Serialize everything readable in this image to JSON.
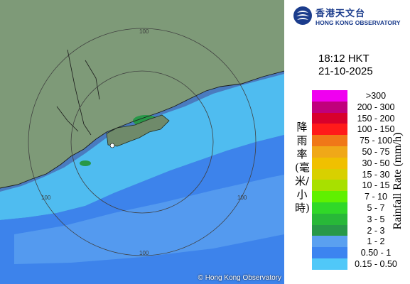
{
  "header": {
    "org_zh": "香港天文台",
    "org_en": "HONG KONG OBSERVATORY"
  },
  "timestamp": {
    "time": "18:12 HKT",
    "date": "21-10-2025"
  },
  "legend": {
    "title_zh": "降雨率(毫米/小時)",
    "title_en": "Rainfall Rate (mm/h)",
    "classes": [
      {
        "label": ">300",
        "color": "#f000f0"
      },
      {
        "label": "200 - 300",
        "color": "#c0007c"
      },
      {
        "label": "150 - 200",
        "color": "#d8002c"
      },
      {
        "label": "100 - 150",
        "color": "#ff1a1a"
      },
      {
        "label": "75 - 100",
        "color": "#f07818"
      },
      {
        "label": "50 - 75",
        "color": "#f0a818"
      },
      {
        "label": "30 - 50",
        "color": "#f0c000"
      },
      {
        "label": "15 - 30",
        "color": "#d8d000"
      },
      {
        "label": "10 - 15",
        "color": "#a8e000"
      },
      {
        "label": "7 - 10",
        "color": "#60f000"
      },
      {
        "label": "5 - 7",
        "color": "#30d828"
      },
      {
        "label": "3 - 5",
        "color": "#28b838"
      },
      {
        "label": "2 - 3",
        "color": "#289848"
      },
      {
        "label": "1 - 2",
        "color": "#5aa0f0"
      },
      {
        "label": "0.50 - 1",
        "color": "#3c84f0"
      },
      {
        "label": "0.15 - 0.50",
        "color": "#50c8f8"
      }
    ]
  },
  "map": {
    "range_labels": [
      "100",
      "100",
      "100",
      "100"
    ],
    "copyright": "© Hong Kong Observatory"
  }
}
